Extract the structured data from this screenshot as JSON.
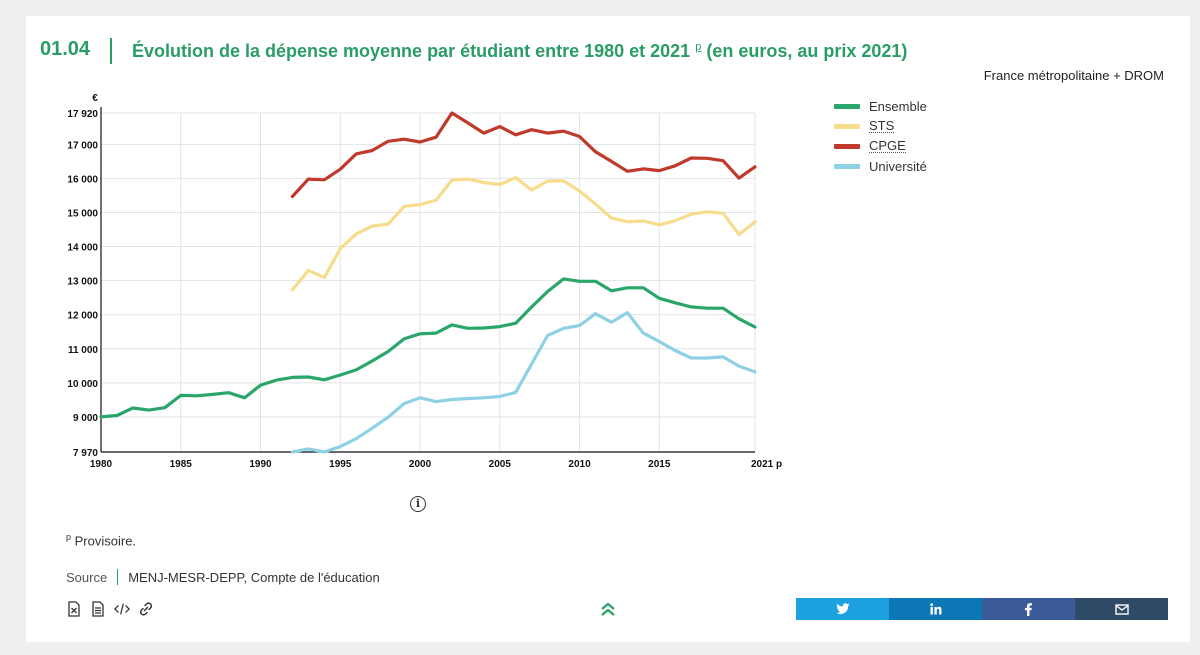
{
  "header": {
    "number": "01.04",
    "title": "Évolution de la dépense moyenne par étudiant entre 1980 et 2021",
    "title_sup": "p",
    "title_suffix": "(en euros, au prix 2021)",
    "scope": "France métropolitaine + DROM"
  },
  "footer": {
    "note_sup": "p",
    "note": "Provisoire.",
    "source_label": "Source",
    "source_text": "MENJ-MESR-DEPP, Compte de l'éducation"
  },
  "colors": {
    "accent": "#2a9d65",
    "twitter": "#1da1e0",
    "linkedin": "#0b77b5",
    "facebook": "#3b5a9a",
    "mail": "#2f4a66"
  },
  "icons": [
    "info-icon",
    "excel-icon",
    "document-icon",
    "code-icon",
    "link-icon",
    "double-chevron-up-icon",
    "twitter-icon",
    "linkedin-icon",
    "facebook-icon",
    "mail-icon"
  ],
  "chart_data": {
    "type": "line",
    "y_unit": "€",
    "x_ticks": [
      "1980",
      "1985",
      "1990",
      "1995",
      "2000",
      "2005",
      "2010",
      "2015",
      "2021 p"
    ],
    "x_tick_values": [
      1980,
      1985,
      1990,
      1995,
      2000,
      2005,
      2010,
      2015,
      2021
    ],
    "y_ticks": [
      "7 970",
      "9 000",
      "10 000",
      "11 000",
      "12 000",
      "13 000",
      "14 000",
      "15 000",
      "16 000",
      "17 000",
      "17 920"
    ],
    "y_tick_values": [
      7970,
      9000,
      10000,
      11000,
      12000,
      13000,
      14000,
      15000,
      16000,
      17000,
      17920
    ],
    "xlim": [
      1980,
      2021
    ],
    "ylim": [
      7970,
      17920
    ],
    "grid": true,
    "legend_position": "right",
    "series": [
      {
        "name": "Ensemble",
        "color": "#2aa66b",
        "x": [
          1980,
          1981,
          1982,
          1983,
          1984,
          1985,
          1986,
          1987,
          1988,
          1989,
          1990,
          1991,
          1992,
          1993,
          1994,
          1995,
          1996,
          1997,
          1998,
          1999,
          2000,
          2001,
          2002,
          2003,
          2004,
          2005,
          2006,
          2007,
          2008,
          2009,
          2010,
          2011,
          2012,
          2013,
          2014,
          2015,
          2016,
          2017,
          2018,
          2019,
          2020,
          2021
        ],
        "values": [
          9000,
          9040,
          9260,
          9200,
          9270,
          9630,
          9620,
          9660,
          9710,
          9560,
          9930,
          10080,
          10160,
          10170,
          10090,
          10230,
          10380,
          10640,
          10920,
          11290,
          11440,
          11460,
          11700,
          11600,
          11610,
          11650,
          11750,
          12230,
          12680,
          13050,
          12980,
          12980,
          12700,
          12790,
          12790,
          12480,
          12350,
          12230,
          12190,
          12190,
          11880,
          11640
        ]
      },
      {
        "name": "STS",
        "abbr": true,
        "color": "#f7dc8c",
        "x": [
          1992,
          1993,
          1994,
          1995,
          1996,
          1997,
          1998,
          1999,
          2000,
          2001,
          2002,
          2003,
          2004,
          2005,
          2006,
          2007,
          2008,
          2009,
          2010,
          2011,
          2012,
          2013,
          2014,
          2015,
          2016,
          2017,
          2018,
          2019,
          2020,
          2021
        ],
        "values": [
          12730,
          13300,
          13090,
          13940,
          14370,
          14600,
          14660,
          15180,
          15230,
          15360,
          15950,
          15980,
          15880,
          15820,
          16020,
          15660,
          15920,
          15930,
          15630,
          15250,
          14840,
          14730,
          14750,
          14640,
          14760,
          14950,
          15020,
          14980,
          14350,
          14730
        ]
      },
      {
        "name": "CPGE",
        "abbr": true,
        "color": "#c0392b",
        "x": [
          1992,
          1993,
          1994,
          1995,
          1996,
          1997,
          1998,
          1999,
          2000,
          2001,
          2002,
          2003,
          2004,
          2005,
          2006,
          2007,
          2008,
          2009,
          2010,
          2011,
          2012,
          2013,
          2014,
          2015,
          2016,
          2017,
          2018,
          2019,
          2020,
          2021
        ],
        "values": [
          15470,
          15980,
          15960,
          16270,
          16720,
          16820,
          17090,
          17150,
          17070,
          17210,
          17920,
          17630,
          17330,
          17520,
          17280,
          17430,
          17330,
          17390,
          17230,
          16780,
          16500,
          16210,
          16280,
          16230,
          16370,
          16600,
          16590,
          16520,
          16010,
          16340
        ]
      },
      {
        "name": "Université",
        "color": "#8ed0e4",
        "x": [
          1992,
          1993,
          1994,
          1995,
          1996,
          1997,
          1998,
          1999,
          2000,
          2001,
          2002,
          2003,
          2004,
          2005,
          2006,
          2007,
          2008,
          2009,
          2010,
          2011,
          2012,
          2013,
          2014,
          2015,
          2016,
          2017,
          2018,
          2019,
          2020,
          2021
        ],
        "values": [
          7970,
          8060,
          7970,
          8130,
          8360,
          8670,
          8990,
          9390,
          9560,
          9450,
          9510,
          9540,
          9560,
          9600,
          9720,
          10560,
          11390,
          11600,
          11680,
          12030,
          11780,
          12060,
          11460,
          11210,
          10950,
          10730,
          10730,
          10760,
          10490,
          10320
        ]
      }
    ]
  }
}
